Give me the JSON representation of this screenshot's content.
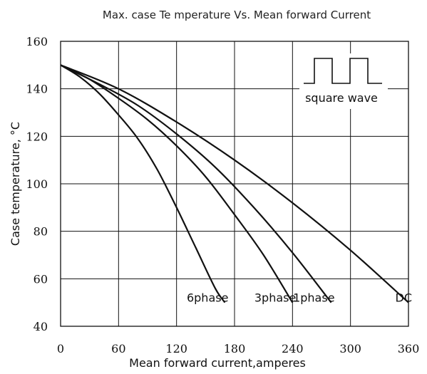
{
  "chart_data": {
    "type": "line",
    "title": "Max. case Te mperature Vs. Mean forward Current",
    "xlabel": "Mean forward current,amperes",
    "ylabel": "Case temperature, °C",
    "xlim": [
      0,
      360
    ],
    "ylim": [
      40,
      160
    ],
    "xticks": [
      0,
      60,
      120,
      180,
      240,
      300,
      360
    ],
    "yticks": [
      40,
      60,
      80,
      100,
      120,
      140,
      160
    ],
    "grid": true,
    "series": [
      {
        "name": "6phase",
        "x": [
          0,
          20,
          40,
          60,
          80,
          100,
          120,
          140,
          160,
          170
        ],
        "y": [
          150,
          145,
          138,
          129,
          119,
          106,
          90,
          73,
          56,
          50
        ]
      },
      {
        "name": "3phase",
        "x": [
          0,
          30,
          60,
          90,
          120,
          150,
          180,
          210,
          240
        ],
        "y": [
          150,
          144,
          136,
          127,
          116,
          103,
          87,
          70,
          50
        ]
      },
      {
        "name": "1phase",
        "x": [
          0,
          40,
          80,
          120,
          160,
          200,
          240,
          280
        ],
        "y": [
          150,
          142,
          133,
          121,
          107,
          90,
          71,
          50
        ]
      },
      {
        "name": "DC",
        "x": [
          0,
          60,
          120,
          180,
          240,
          300,
          360
        ],
        "y": [
          150,
          140,
          126,
          110,
          92,
          72,
          50
        ]
      }
    ],
    "legend": {
      "label": "square wave",
      "placement": "top-right"
    }
  }
}
